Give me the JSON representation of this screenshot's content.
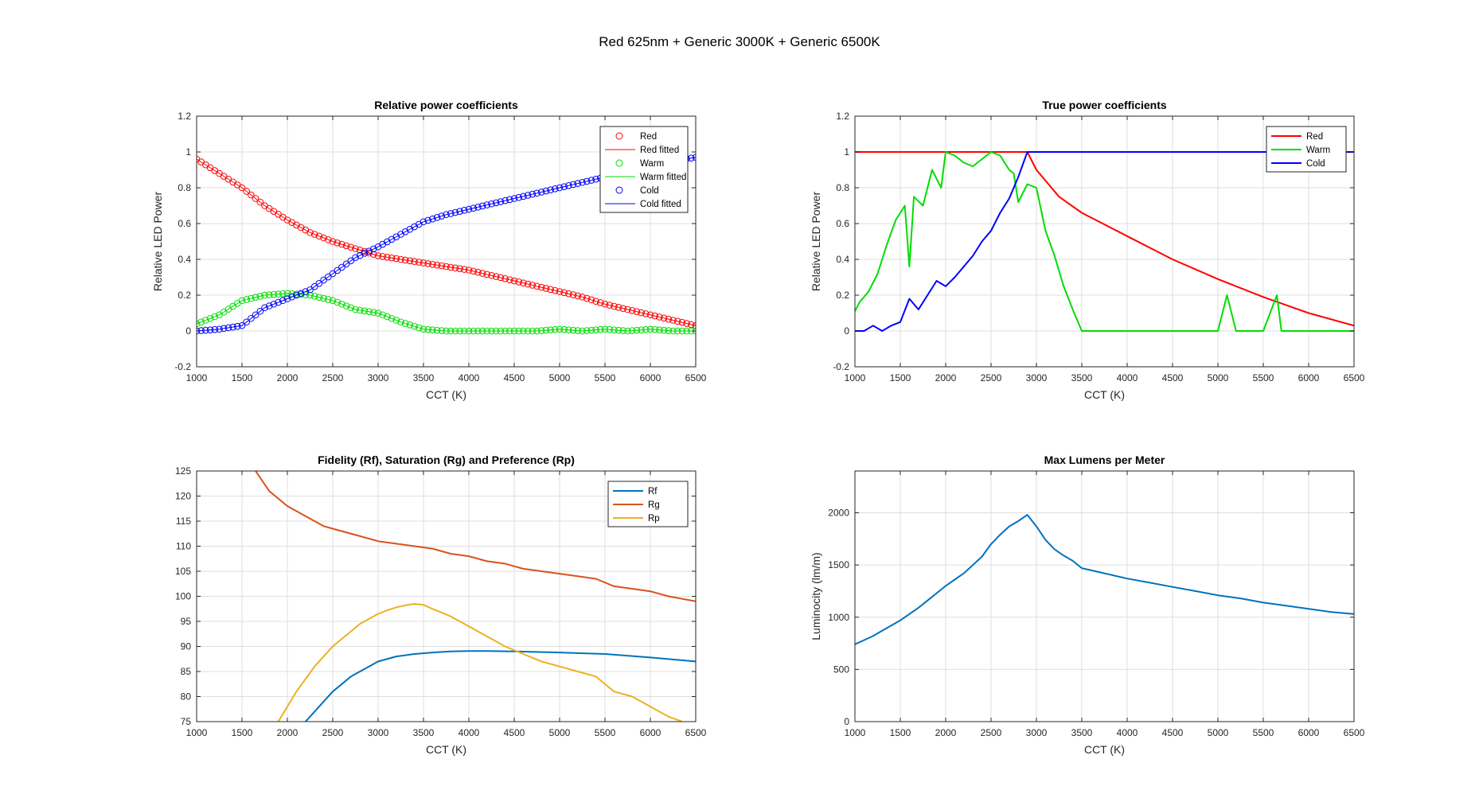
{
  "figure_title": "Red 625nm + Generic 3000K + Generic 6500K",
  "colors": {
    "red": "#ff0000",
    "warm": "#00dd00",
    "cold": "#0000ff",
    "rf": "#0072bd",
    "rg": "#d95319",
    "rp": "#edb120",
    "lumens": "#0072bd"
  },
  "chart_data": [
    {
      "type": "scatter",
      "title": "Relative power coefficients",
      "xlabel": "CCT (K)",
      "ylabel": "Relative LED Power",
      "xlim": [
        1000,
        6500
      ],
      "ylim": [
        -0.2,
        1.2
      ],
      "xticks": [
        1000,
        1500,
        2000,
        2500,
        3000,
        3500,
        4000,
        4500,
        5000,
        5500,
        6000,
        6500
      ],
      "yticks": [
        -0.2,
        0,
        0.2,
        0.4,
        0.6,
        0.8,
        1,
        1.2
      ],
      "grid": true,
      "legend": "top-right",
      "legend_entries": [
        "Red",
        "Red fitted",
        "Warm",
        "Warm fitted",
        "Cold",
        "Cold fitted"
      ],
      "series": [
        {
          "name": "Red",
          "marker": "circle",
          "color": "#ff0000",
          "x": [
            1000,
            1250,
            1500,
            1750,
            2000,
            2250,
            2500,
            2750,
            3000,
            3250,
            3500,
            3750,
            4000,
            4250,
            4500,
            4750,
            5000,
            5250,
            5500,
            5750,
            6000,
            6250,
            6500
          ],
          "y": [
            0.96,
            0.88,
            0.8,
            0.7,
            0.62,
            0.55,
            0.5,
            0.46,
            0.42,
            0.4,
            0.38,
            0.36,
            0.34,
            0.31,
            0.28,
            0.25,
            0.22,
            0.19,
            0.15,
            0.12,
            0.09,
            0.06,
            0.03
          ]
        },
        {
          "name": "Red fitted",
          "marker": "line",
          "color": "#ff0000",
          "x": [
            1000,
            1250,
            1500,
            1750,
            2000,
            2250,
            2500,
            2750,
            3000,
            3250,
            3500,
            3750,
            4000,
            4250,
            4500,
            4750,
            5000,
            5250,
            5500,
            5750,
            6000,
            6250,
            6500
          ],
          "y": [
            0.96,
            0.88,
            0.8,
            0.7,
            0.62,
            0.55,
            0.5,
            0.46,
            0.42,
            0.4,
            0.38,
            0.36,
            0.34,
            0.31,
            0.28,
            0.25,
            0.22,
            0.19,
            0.15,
            0.12,
            0.09,
            0.06,
            0.03
          ]
        },
        {
          "name": "Warm",
          "marker": "circle",
          "color": "#00dd00",
          "x": [
            1000,
            1250,
            1500,
            1750,
            2000,
            2250,
            2500,
            2750,
            3000,
            3250,
            3500,
            3750,
            4000,
            4250,
            4500,
            4750,
            5000,
            5250,
            5500,
            5750,
            6000,
            6250,
            6500
          ],
          "y": [
            0.04,
            0.09,
            0.17,
            0.2,
            0.21,
            0.2,
            0.17,
            0.12,
            0.1,
            0.05,
            0.01,
            0.0,
            0.0,
            0.0,
            0.0,
            0.0,
            0.01,
            0.0,
            0.01,
            0.0,
            0.01,
            0.0,
            0.0
          ]
        },
        {
          "name": "Warm fitted",
          "marker": "line",
          "color": "#00dd00",
          "x": [
            1000,
            1250,
            1500,
            1750,
            2000,
            2250,
            2500,
            2750,
            3000,
            3250,
            3500,
            3750,
            4000,
            4250,
            4500,
            4750,
            5000,
            5250,
            5500,
            5750,
            6000,
            6250,
            6500
          ],
          "y": [
            0.04,
            0.09,
            0.17,
            0.2,
            0.21,
            0.2,
            0.17,
            0.12,
            0.1,
            0.05,
            0.01,
            0.0,
            0.0,
            0.0,
            0.0,
            0.0,
            0.01,
            0.0,
            0.01,
            0.0,
            0.01,
            0.0,
            0.0
          ]
        },
        {
          "name": "Cold",
          "marker": "circle",
          "color": "#0000ff",
          "x": [
            1000,
            1250,
            1500,
            1750,
            2000,
            2250,
            2500,
            2750,
            3000,
            3250,
            3500,
            3750,
            4000,
            4250,
            4500,
            4750,
            5000,
            5250,
            5500,
            5750,
            6000,
            6250,
            6500
          ],
          "y": [
            0.0,
            0.01,
            0.03,
            0.13,
            0.18,
            0.23,
            0.32,
            0.41,
            0.47,
            0.54,
            0.61,
            0.65,
            0.68,
            0.71,
            0.74,
            0.77,
            0.8,
            0.83,
            0.86,
            0.89,
            0.92,
            0.95,
            0.97
          ]
        },
        {
          "name": "Cold fitted",
          "marker": "line",
          "color": "#0000ff",
          "x": [
            1000,
            1250,
            1500,
            1750,
            2000,
            2250,
            2500,
            2750,
            3000,
            3250,
            3500,
            3750,
            4000,
            4250,
            4500,
            4750,
            5000,
            5250,
            5500,
            5750,
            6000,
            6250,
            6500
          ],
          "y": [
            0.0,
            0.01,
            0.03,
            0.13,
            0.18,
            0.23,
            0.32,
            0.41,
            0.47,
            0.54,
            0.61,
            0.65,
            0.68,
            0.71,
            0.74,
            0.77,
            0.8,
            0.83,
            0.86,
            0.89,
            0.92,
            0.95,
            0.97
          ]
        }
      ]
    },
    {
      "type": "line",
      "title": "True power coefficients",
      "xlabel": "CCT (K)",
      "ylabel": "Relative LED Power",
      "xlim": [
        1000,
        6500
      ],
      "ylim": [
        -0.2,
        1.2
      ],
      "xticks": [
        1000,
        1500,
        2000,
        2500,
        3000,
        3500,
        4000,
        4500,
        5000,
        5500,
        6000,
        6500
      ],
      "yticks": [
        -0.2,
        0,
        0.2,
        0.4,
        0.6,
        0.8,
        1,
        1.2
      ],
      "grid": true,
      "legend": "top-right",
      "legend_entries": [
        "Red",
        "Warm",
        "Cold"
      ],
      "series": [
        {
          "name": "Red",
          "color": "#ff0000",
          "x": [
            1000,
            2000,
            2900,
            3000,
            3250,
            3500,
            4000,
            4500,
            5000,
            5500,
            6000,
            6500
          ],
          "y": [
            1,
            1,
            1,
            0.9,
            0.75,
            0.66,
            0.53,
            0.4,
            0.29,
            0.19,
            0.1,
            0.03
          ]
        },
        {
          "name": "Warm",
          "color": "#00dd00",
          "x": [
            1000,
            1050,
            1150,
            1250,
            1350,
            1450,
            1550,
            1600,
            1650,
            1750,
            1850,
            1950,
            2000,
            2100,
            2200,
            2300,
            2400,
            2500,
            2600,
            2700,
            2750,
            2800,
            2900,
            3000,
            3100,
            3200,
            3300,
            3400,
            3500,
            3600,
            4000,
            4500,
            5000,
            5100,
            5200,
            5500,
            5650,
            5700,
            6000,
            6500
          ],
          "y": [
            0.11,
            0.16,
            0.22,
            0.32,
            0.48,
            0.62,
            0.7,
            0.36,
            0.75,
            0.7,
            0.9,
            0.8,
            1.0,
            0.98,
            0.94,
            0.92,
            0.96,
            1.0,
            0.98,
            0.9,
            0.88,
            0.72,
            0.82,
            0.8,
            0.56,
            0.42,
            0.25,
            0.12,
            0.0,
            0.0,
            0.0,
            0.0,
            0.0,
            0.2,
            0.0,
            0.0,
            0.2,
            0.0,
            0.0,
            0.0
          ]
        },
        {
          "name": "Cold",
          "color": "#0000ff",
          "x": [
            1000,
            1100,
            1200,
            1300,
            1400,
            1500,
            1600,
            1700,
            1800,
            1900,
            2000,
            2100,
            2200,
            2300,
            2400,
            2500,
            2600,
            2700,
            2800,
            2900,
            3000,
            6500
          ],
          "y": [
            0.0,
            0.0,
            0.03,
            0.0,
            0.03,
            0.05,
            0.18,
            0.12,
            0.2,
            0.28,
            0.25,
            0.3,
            0.36,
            0.42,
            0.5,
            0.56,
            0.66,
            0.74,
            0.86,
            1.0,
            1.0,
            1.0
          ]
        }
      ]
    },
    {
      "type": "line",
      "title": "Fidelity (Rf), Saturation (Rg) and Preference (Rp)",
      "xlabel": "CCT (K)",
      "ylabel": "",
      "xlim": [
        1000,
        6500
      ],
      "ylim": [
        75,
        125
      ],
      "xticks": [
        1000,
        1500,
        2000,
        2500,
        3000,
        3500,
        4000,
        4500,
        5000,
        5500,
        6000,
        6500
      ],
      "yticks": [
        75,
        80,
        85,
        90,
        95,
        100,
        105,
        110,
        115,
        120,
        125
      ],
      "grid": true,
      "legend": "top-right",
      "legend_entries": [
        "Rf",
        "Rg",
        "Rp"
      ],
      "series": [
        {
          "name": "Rf",
          "color": "#0072bd",
          "x": [
            2200,
            2300,
            2400,
            2500,
            2600,
            2700,
            2800,
            2900,
            3000,
            3200,
            3400,
            3600,
            3800,
            4000,
            4200,
            4500,
            5000,
            5500,
            6000,
            6500
          ],
          "y": [
            75,
            77,
            79,
            81,
            82.5,
            84,
            85,
            86,
            87,
            88,
            88.5,
            88.8,
            89,
            89.1,
            89.1,
            89,
            88.8,
            88.5,
            87.8,
            87
          ]
        },
        {
          "name": "Rg",
          "color": "#d95319",
          "x": [
            1650,
            1800,
            1900,
            2000,
            2100,
            2200,
            2300,
            2400,
            2500,
            2600,
            2800,
            3000,
            3200,
            3400,
            3600,
            3800,
            4000,
            4200,
            4400,
            4600,
            4800,
            5000,
            5200,
            5400,
            5600,
            5800,
            6000,
            6200,
            6500
          ],
          "y": [
            125,
            121,
            119.5,
            118,
            117,
            116,
            115,
            114,
            113.5,
            113,
            112,
            111,
            110.5,
            110,
            109.5,
            108.5,
            108,
            107,
            106.5,
            105.5,
            105,
            104.5,
            104,
            103.5,
            102,
            101.5,
            101,
            100,
            99
          ]
        },
        {
          "name": "Rp",
          "color": "#edb120",
          "x": [
            1900,
            2000,
            2100,
            2200,
            2300,
            2400,
            2500,
            2600,
            2700,
            2800,
            2900,
            3000,
            3100,
            3200,
            3300,
            3400,
            3500,
            3600,
            3800,
            4000,
            4200,
            4400,
            4600,
            4800,
            5000,
            5200,
            5400,
            5600,
            5800,
            6000,
            6200,
            6350
          ],
          "y": [
            75,
            78,
            81,
            83.5,
            86,
            88,
            90,
            91.5,
            93,
            94.5,
            95.5,
            96.5,
            97.2,
            97.8,
            98.2,
            98.5,
            98.3,
            97.5,
            96,
            94,
            92,
            90,
            88.5,
            87,
            86,
            85,
            84,
            81,
            80,
            78,
            76,
            75
          ]
        }
      ]
    },
    {
      "type": "line",
      "title": "Max Lumens per Meter",
      "xlabel": "CCT (K)",
      "ylabel": "Luminocity (lm/m)",
      "xlim": [
        1000,
        6500
      ],
      "ylim": [
        0,
        2400
      ],
      "xticks": [
        1000,
        1500,
        2000,
        2500,
        3000,
        3500,
        4000,
        4500,
        5000,
        5500,
        6000,
        6500
      ],
      "yticks": [
        0,
        500,
        1000,
        1500,
        2000
      ],
      "grid": true,
      "legend": "none",
      "series": [
        {
          "name": "",
          "color": "#0072bd",
          "x": [
            1000,
            1100,
            1200,
            1300,
            1400,
            1500,
            1600,
            1700,
            1800,
            1900,
            2000,
            2100,
            2200,
            2300,
            2400,
            2500,
            2600,
            2700,
            2800,
            2900,
            3000,
            3100,
            3200,
            3300,
            3400,
            3500,
            3750,
            4000,
            4250,
            4500,
            4750,
            5000,
            5250,
            5500,
            5750,
            6000,
            6250,
            6500
          ],
          "y": [
            740,
            780,
            820,
            870,
            920,
            970,
            1030,
            1090,
            1160,
            1230,
            1300,
            1360,
            1420,
            1500,
            1580,
            1700,
            1790,
            1870,
            1920,
            1980,
            1870,
            1740,
            1650,
            1590,
            1540,
            1470,
            1420,
            1370,
            1330,
            1290,
            1250,
            1210,
            1180,
            1140,
            1110,
            1080,
            1050,
            1030
          ]
        }
      ]
    }
  ]
}
